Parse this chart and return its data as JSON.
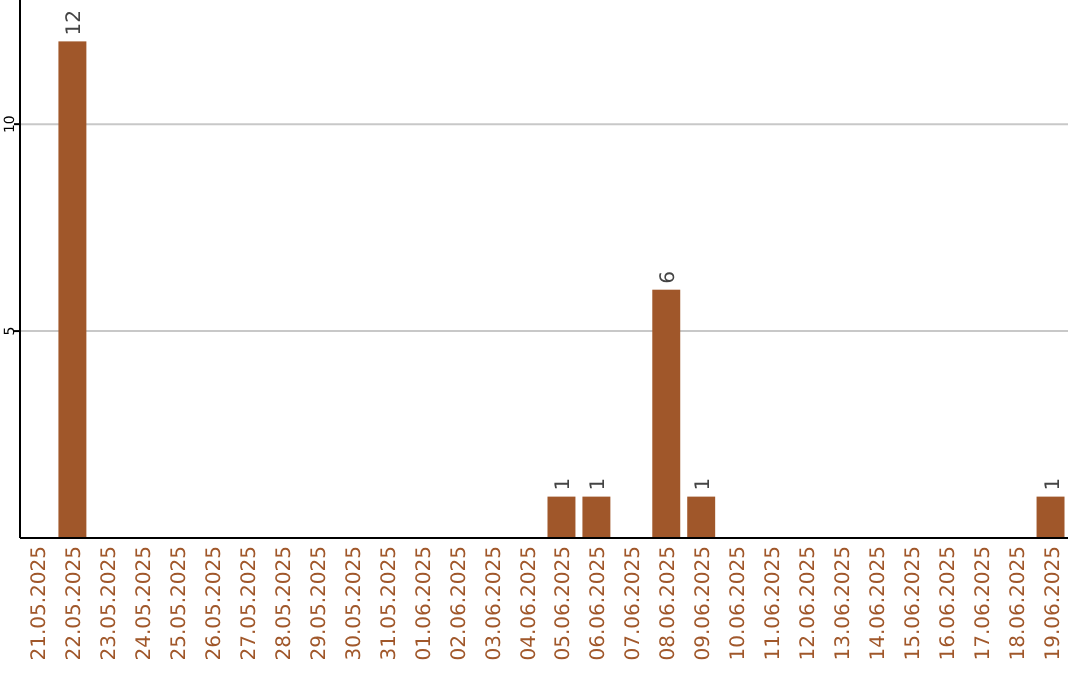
{
  "chart_data": {
    "type": "bar",
    "categories": [
      "21.05.2025",
      "22.05.2025",
      "23.05.2025",
      "24.05.2025",
      "25.05.2025",
      "26.05.2025",
      "27.05.2025",
      "28.05.2025",
      "29.05.2025",
      "30.05.2025",
      "31.05.2025",
      "01.06.2025",
      "02.06.2025",
      "03.06.2025",
      "04.06.2025",
      "05.06.2025",
      "06.06.2025",
      "07.06.2025",
      "08.06.2025",
      "09.06.2025",
      "10.06.2025",
      "11.06.2025",
      "12.06.2025",
      "13.06.2025",
      "14.06.2025",
      "15.06.2025",
      "16.06.2025",
      "17.06.2025",
      "18.06.2025",
      "19.06.2025"
    ],
    "values": [
      0,
      12,
      0,
      0,
      0,
      0,
      0,
      0,
      0,
      0,
      0,
      0,
      0,
      0,
      0,
      1,
      1,
      0,
      6,
      1,
      0,
      0,
      0,
      0,
      0,
      0,
      0,
      0,
      0,
      1
    ],
    "value_labels": [
      null,
      "12",
      null,
      null,
      null,
      null,
      null,
      null,
      null,
      null,
      null,
      null,
      null,
      null,
      null,
      "1",
      "1",
      null,
      "6",
      "1",
      null,
      null,
      null,
      null,
      null,
      null,
      null,
      null,
      null,
      "1"
    ],
    "color": "#a0572a",
    "ylim": [
      0,
      13
    ],
    "yticks": [
      5,
      10
    ],
    "grid": "y"
  }
}
